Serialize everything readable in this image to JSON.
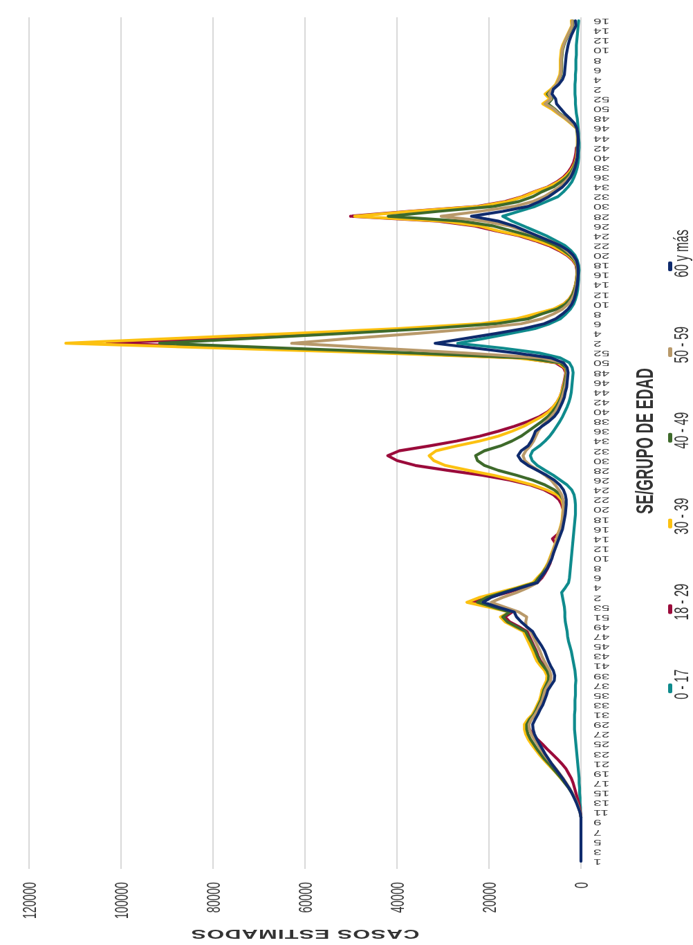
{
  "chart_data": {
    "type": "line",
    "orientation": "horizontal",
    "xlabel": "CASOS ESTIMADOS",
    "ylabel": "SE/GRUPO DE EDAD",
    "categories": [
      "16",
      null,
      "14",
      null,
      "12",
      null,
      "10",
      null,
      "8",
      null,
      "6",
      null,
      "4",
      null,
      "2",
      null,
      "52",
      null,
      "50",
      null,
      "48",
      null,
      "46",
      null,
      "44",
      null,
      "42",
      null,
      "40",
      null,
      "38",
      null,
      "36",
      null,
      "34",
      null,
      "32",
      null,
      "30",
      null,
      "28",
      null,
      "26",
      null,
      "24",
      null,
      "22",
      null,
      "20",
      null,
      "18",
      null,
      "16",
      null,
      "14",
      null,
      "12",
      null,
      "10",
      null,
      "8",
      null,
      "6",
      null,
      "4",
      null,
      "2",
      null,
      "52",
      null,
      "50",
      null,
      "48",
      null,
      "46",
      null,
      "44",
      null,
      "42",
      null,
      "40",
      null,
      "38",
      null,
      "36",
      null,
      "34",
      null,
      "32",
      null,
      "30",
      null,
      "28",
      null,
      "26",
      null,
      "24",
      null,
      "22",
      null,
      "20",
      null,
      "18",
      null,
      "16",
      null,
      "14",
      null,
      "12",
      null,
      "10",
      null,
      "8",
      null,
      "6",
      null,
      "4",
      null,
      "2",
      null,
      "53",
      null,
      "51",
      null,
      "49",
      null,
      "47",
      null,
      "45",
      null,
      "43",
      null,
      "41",
      null,
      "39",
      null,
      "37",
      null,
      "35",
      null,
      "33",
      null,
      "31",
      null,
      "29",
      null,
      "27",
      null,
      "25",
      null,
      "23",
      null,
      "21",
      null,
      "19",
      null,
      "17",
      null,
      "15",
      null,
      "13",
      null,
      "11",
      null,
      "9",
      null,
      "7",
      null,
      "5",
      null,
      "3",
      null,
      "1"
    ],
    "series": [
      {
        "name": "0 - 17",
        "color": "#0f8b8d",
        "values": [
          500,
          600,
          700,
          800,
          900,
          1000,
          1000,
          1000,
          1100,
          1100,
          1100,
          1200,
          1200,
          1300,
          1300,
          1300,
          1200,
          1200,
          1100,
          1000,
          800,
          700,
          600,
          500,
          500,
          400,
          400,
          500,
          500,
          600,
          800,
          1100,
          1500,
          2000,
          2800,
          3800,
          5000,
          7500,
          10000,
          13500,
          17000,
          15000,
          12500,
          10000,
          7500,
          5500,
          3500,
          2200,
          1300,
          800,
          500,
          400,
          500,
          500,
          600,
          700,
          900,
          1200,
          1600,
          2300,
          3300,
          4500,
          6800,
          10000,
          15500,
          21000,
          26800,
          17000,
          9000,
          4500,
          2500,
          1900,
          1700,
          1800,
          1900,
          2000,
          2100,
          2300,
          2600,
          3000,
          3500,
          4000,
          4600,
          5300,
          6000,
          6800,
          7800,
          9000,
          10500,
          11000,
          10600,
          9500,
          7800,
          6000,
          4500,
          3000,
          2000,
          1500,
          1300,
          1200,
          1200,
          1200,
          1300,
          1400,
          1500,
          1600,
          1700,
          1800,
          1900,
          2000,
          2100,
          2200,
          2300,
          2400,
          2500,
          2700,
          3400,
          4200,
          4000,
          3800,
          3600,
          3500,
          3500,
          3400,
          3200,
          3000,
          2900,
          2700,
          2400,
          2100,
          1900,
          1700,
          1500,
          1300,
          1200,
          1100,
          1200,
          1200,
          1200,
          1300,
          1300,
          1300,
          1400,
          1400,
          1400,
          1400,
          1300,
          1200,
          1100,
          1000,
          900,
          800,
          700,
          600,
          500,
          400,
          400,
          300,
          300,
          200,
          200,
          100,
          100,
          0,
          null,
          null,
          null,
          null,
          null,
          null,
          null,
          null,
          null
        ]
      },
      {
        "name": "18 - 29",
        "color": "#9b0b3b",
        "values": [
          null,
          null,
          null,
          null,
          null,
          null,
          null,
          null,
          null,
          null,
          null,
          null,
          null,
          null,
          null,
          null,
          null,
          null,
          null,
          null,
          null,
          null,
          null,
          null,
          null,
          null,
          1000,
          1100,
          1300,
          1600,
          2100,
          2800,
          3800,
          5300,
          7200,
          10200,
          12800,
          16500,
          22500,
          37500,
          50100,
          31000,
          23000,
          18500,
          13500,
          10000,
          7000,
          4800,
          3000,
          1800,
          1100,
          900,
          900,
          1000,
          1200,
          1500,
          1900,
          2600,
          3800,
          5800,
          9500,
          13000,
          20500,
          37000,
          58000,
          81000,
          103000,
          71000,
          40000,
          13000,
          5500,
          3800,
          3300,
          3500,
          3700,
          4000,
          4200,
          4600,
          5200,
          6000,
          7200,
          9000,
          11500,
          14500,
          18000,
          22000,
          27000,
          33000,
          39500,
          42000,
          40000,
          36000,
          29000,
          21500,
          15500,
          11000,
          8000,
          6000,
          4800,
          4200,
          3900,
          3900,
          4000,
          4200,
          4500,
          5000,
          6200,
          5500,
          5800,
          6000,
          6400,
          6700,
          7200,
          7800,
          8500,
          9500,
          12500,
          16000,
          20000,
          23500,
          19000,
          15000,
          16500,
          15500,
          13500,
          11700,
          11200,
          10700,
          10200,
          9700,
          9300,
          8800,
          8000,
          7200,
          6800,
          6900,
          7400,
          7900,
          8200,
          8500,
          9000,
          9600,
          10200,
          11000,
          11500,
          11200,
          10500,
          9500,
          8400,
          7400,
          6300,
          5200,
          4200,
          3300,
          2700,
          2100,
          1700,
          1400,
          1100,
          800,
          500,
          300,
          100,
          0,
          null,
          null,
          null,
          null,
          null,
          null,
          null,
          null,
          null
        ]
      },
      {
        "name": "30 - 39",
        "color": "#fcc111",
        "values": [
          2100,
          2000,
          2500,
          3000,
          3500,
          4000,
          4300,
          4400,
          4500,
          4500,
          4500,
          4600,
          5000,
          5500,
          6500,
          7800,
          6800,
          8300,
          6500,
          5000,
          3500,
          2200,
          1000,
          800,
          800,
          800,
          800,
          900,
          1000,
          1300,
          1800,
          2500,
          3500,
          5000,
          7000,
          10000,
          12500,
          16000,
          22000,
          37000,
          49200,
          30000,
          22000,
          18000,
          13000,
          9500,
          6500,
          4500,
          2800,
          1600,
          1000,
          800,
          900,
          1000,
          1200,
          1500,
          1900,
          2600,
          3800,
          6000,
          10000,
          14000,
          22000,
          40000,
          63000,
          88000,
          112000,
          77000,
          43000,
          14000,
          5000,
          3500,
          3200,
          3400,
          3600,
          3900,
          4200,
          4600,
          5200,
          6000,
          7000,
          8500,
          10500,
          12500,
          15000,
          18000,
          22000,
          27000,
          31500,
          33000,
          32000,
          29500,
          24500,
          19000,
          14500,
          10500,
          7500,
          5200,
          4200,
          3900,
          3900,
          4000,
          4100,
          4300,
          4600,
          5000,
          5300,
          5600,
          6000,
          6400,
          6800,
          7200,
          7800,
          8500,
          9500,
          10500,
          14000,
          18000,
          22000,
          24800,
          20000,
          15500,
          17500,
          16500,
          14500,
          12500,
          12000,
          11500,
          11000,
          10500,
          10100,
          9600,
          8800,
          7900,
          7400,
          7500,
          8000,
          8500,
          8700,
          9000,
          9500,
          10000,
          10600,
          11600,
          12300,
          12300,
          12000,
          11500,
          10800,
          10000,
          9200,
          8300,
          7300,
          6300,
          5300,
          4400,
          3500,
          null,
          null,
          null,
          null,
          null,
          null,
          null,
          null,
          null,
          null,
          null,
          null,
          null,
          null,
          null,
          null
        ]
      },
      {
        "name": "40 - 49",
        "color": "#3e6a2b",
        "values": [
          1800,
          1800,
          2300,
          2800,
          3300,
          3700,
          4000,
          4100,
          4200,
          4200,
          4200,
          4300,
          4700,
          5200,
          6200,
          7300,
          6300,
          7200,
          5800,
          4600,
          3200,
          2000,
          900,
          800,
          700,
          700,
          800,
          800,
          900,
          1200,
          1600,
          2200,
          3100,
          4400,
          6000,
          8500,
          10500,
          13500,
          19000,
          31000,
          41900,
          26000,
          19000,
          15000,
          11000,
          8000,
          5500,
          3800,
          2400,
          1400,
          900,
          800,
          800,
          900,
          1100,
          1400,
          1800,
          2400,
          3400,
          5200,
          8500,
          11500,
          18500,
          33000,
          52000,
          72000,
          91600,
          64000,
          36000,
          12000,
          4500,
          3300,
          3100,
          3300,
          3500,
          3700,
          4000,
          4300,
          4800,
          5400,
          6200,
          7200,
          8500,
          10000,
          11500,
          13000,
          15000,
          17500,
          21000,
          22900,
          22500,
          21000,
          18000,
          14000,
          10500,
          7800,
          5800,
          4500,
          3900,
          3700,
          3700,
          3800,
          3900,
          4100,
          4400,
          4700,
          5000,
          5400,
          5800,
          6200,
          6600,
          7000,
          7600,
          8300,
          9200,
          10000,
          13500,
          17000,
          20500,
          22500,
          19000,
          15500,
          17000,
          16000,
          14000,
          12000,
          11500,
          10900,
          10400,
          9900,
          9500,
          9000,
          8200,
          7400,
          7000,
          7100,
          7600,
          8100,
          8400,
          8700,
          9200,
          9700,
          10300,
          11200,
          11800,
          11800,
          11500,
          11000,
          10300,
          9600,
          8800,
          8000,
          7000,
          6100,
          5200,
          4300,
          3500,
          2700,
          2000,
          1400,
          900,
          500,
          200,
          0,
          null,
          null,
          null,
          null,
          null,
          null,
          null,
          null,
          null
        ]
      },
      {
        "name": "50 - 59",
        "color": "#b8996a",
        "values": [
          1900,
          1900,
          2400,
          2900,
          3400,
          3800,
          4100,
          4200,
          4300,
          4300,
          4300,
          4400,
          4800,
          5300,
          6300,
          7000,
          6500,
          7800,
          6000,
          4800,
          3300,
          2000,
          900,
          700,
          700,
          700,
          700,
          800,
          900,
          1100,
          1400,
          1900,
          2500,
          3500,
          4700,
          6300,
          8000,
          10500,
          14500,
          22000,
          30400,
          21000,
          15500,
          12500,
          9500,
          6800,
          4500,
          3200,
          2000,
          1200,
          800,
          700,
          700,
          800,
          1000,
          1200,
          1500,
          2000,
          2800,
          4000,
          6000,
          8500,
          13000,
          23000,
          36000,
          50000,
          62900,
          44000,
          25000,
          8500,
          3800,
          3100,
          3000,
          3100,
          3300,
          3500,
          3800,
          4100,
          4500,
          5000,
          5600,
          6500,
          7500,
          8600,
          9300,
          9800,
          10300,
          11000,
          12000,
          12600,
          12200,
          11000,
          9300,
          7800,
          6500,
          5600,
          4800,
          4200,
          3900,
          3800,
          3800,
          3900,
          4000,
          4200,
          4500,
          4900,
          5200,
          5500,
          5900,
          6200,
          6600,
          7000,
          7500,
          8000,
          8800,
          9500,
          11500,
          14000,
          17000,
          19500,
          16500,
          13500,
          11800,
          12000,
          11900,
          10900,
          10400,
          9900,
          9400,
          8900,
          8500,
          8000,
          7400,
          6800,
          6500,
          6600,
          7200,
          7800,
          8100,
          8400,
          8900,
          9400,
          10000,
          10800,
          11300,
          11200,
          10800,
          10200,
          9500,
          8800,
          8100,
          7300,
          6400,
          5500,
          4700,
          3900,
          3200,
          2500,
          1900,
          1400,
          900,
          500,
          200,
          0,
          null,
          null,
          null,
          null,
          null,
          null,
          null,
          null,
          null
        ]
      },
      {
        "name": "60 y más",
        "color": "#0f2b6d",
        "values": [
          1200,
          1100,
          1600,
          2100,
          2500,
          2800,
          3000,
          3200,
          3300,
          3400,
          3500,
          3600,
          4000,
          4800,
          6000,
          6300,
          5500,
          5300,
          4400,
          3500,
          2400,
          1400,
          900,
          700,
          600,
          600,
          700,
          700,
          800,
          1000,
          1300,
          1700,
          2200,
          3000,
          4000,
          5500,
          7000,
          9000,
          11500,
          17000,
          23800,
          18000,
          14500,
          12000,
          9500,
          7000,
          4500,
          2800,
          1700,
          1000,
          700,
          600,
          600,
          700,
          800,
          1000,
          1200,
          1500,
          2000,
          2800,
          4000,
          5500,
          8000,
          12500,
          18500,
          25000,
          31700,
          23000,
          14000,
          6500,
          3800,
          3000,
          2800,
          2900,
          3000,
          3100,
          3400,
          3600,
          4000,
          4500,
          5000,
          5800,
          7000,
          8500,
          9900,
          10300,
          10800,
          11500,
          13000,
          13700,
          13000,
          11500,
          9500,
          7500,
          5800,
          4600,
          3800,
          3400,
          3200,
          3200,
          3300,
          3400,
          3600,
          3800,
          4000,
          4400,
          4800,
          5200,
          5600,
          6000,
          6300,
          6800,
          7300,
          8000,
          8800,
          9500,
          13000,
          16500,
          19500,
          21300,
          18000,
          14500,
          14000,
          13000,
          11800,
          10500,
          9900,
          9200,
          8500,
          7900,
          7500,
          7100,
          6600,
          6000,
          5700,
          5800,
          6500,
          7200,
          7500,
          7900,
          8300,
          8900,
          9400,
          10000,
          10500,
          10400,
          10100,
          9600,
          9000,
          8400,
          7800,
          7100,
          6400,
          5600,
          4800,
          4000,
          3300,
          2600,
          2000,
          1500,
          1000,
          600,
          200,
          0,
          0,
          0,
          0,
          0,
          0,
          0,
          0,
          0,
          0
        ]
      }
    ],
    "xlim": [
      120000,
      0
    ],
    "xticks": [
      120000,
      100000,
      80000,
      60000,
      40000,
      20000,
      0
    ],
    "grid": "x",
    "legend": "right"
  }
}
